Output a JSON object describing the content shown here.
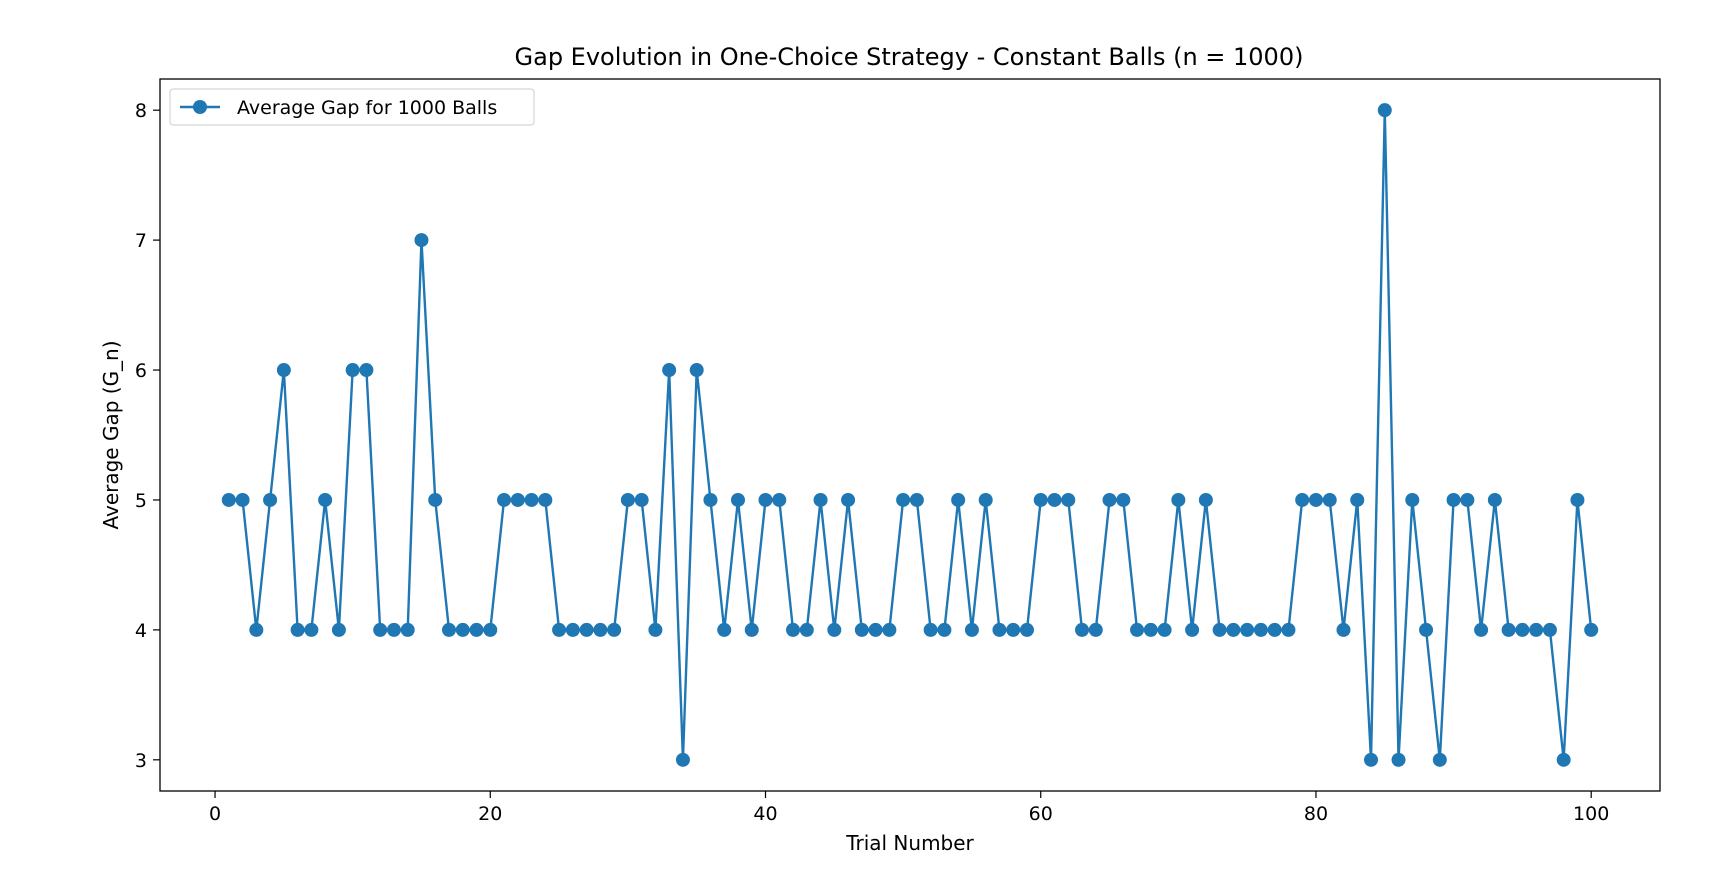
{
  "chart_data": {
    "type": "line",
    "title": "Gap Evolution in One-Choice Strategy - Constant Balls (n = 1000)",
    "xlabel": "Trial Number",
    "ylabel": "Average Gap (G_n)",
    "xlim": [
      -4,
      105
    ],
    "ylim": [
      2.76,
      8.24
    ],
    "xticks": [
      0,
      20,
      40,
      60,
      80,
      100
    ],
    "yticks": [
      3,
      4,
      5,
      6,
      7,
      8
    ],
    "grid": false,
    "legend_position": "top-left",
    "series": [
      {
        "name": "Average Gap for 1000 Balls",
        "color": "#1f77b4",
        "marker": "circle",
        "x": [
          1,
          2,
          3,
          4,
          5,
          6,
          7,
          8,
          9,
          10,
          11,
          12,
          13,
          14,
          15,
          16,
          17,
          18,
          19,
          20,
          21,
          22,
          23,
          24,
          25,
          26,
          27,
          28,
          29,
          30,
          31,
          32,
          33,
          34,
          35,
          36,
          37,
          38,
          39,
          40,
          41,
          42,
          43,
          44,
          45,
          46,
          47,
          48,
          49,
          50,
          51,
          52,
          53,
          54,
          55,
          56,
          57,
          58,
          59,
          60,
          61,
          62,
          63,
          64,
          65,
          66,
          67,
          68,
          69,
          70,
          71,
          72,
          73,
          74,
          75,
          76,
          77,
          78,
          79,
          80,
          81,
          82,
          83,
          84,
          85,
          86,
          87,
          88,
          89,
          90,
          91,
          92,
          93,
          94,
          95,
          96,
          97,
          98,
          99,
          100
        ],
        "y": [
          5,
          5,
          4,
          5,
          6,
          4,
          4,
          5,
          4,
          6,
          6,
          4,
          4,
          4,
          7,
          5,
          4,
          4,
          4,
          4,
          5,
          5,
          5,
          5,
          4,
          4,
          4,
          4,
          4,
          5,
          5,
          4,
          6,
          3,
          6,
          5,
          4,
          5,
          4,
          5,
          5,
          4,
          4,
          5,
          4,
          5,
          4,
          4,
          4,
          5,
          5,
          4,
          4,
          5,
          4,
          5,
          4,
          4,
          4,
          5,
          5,
          5,
          4,
          4,
          5,
          5,
          4,
          4,
          4,
          5,
          4,
          5,
          4,
          4,
          4,
          4,
          4,
          4,
          5,
          5,
          5,
          4,
          5,
          3,
          8,
          3,
          5,
          4,
          3,
          5,
          5,
          4,
          5,
          4,
          4,
          4,
          4,
          3,
          5,
          4
        ]
      }
    ]
  }
}
